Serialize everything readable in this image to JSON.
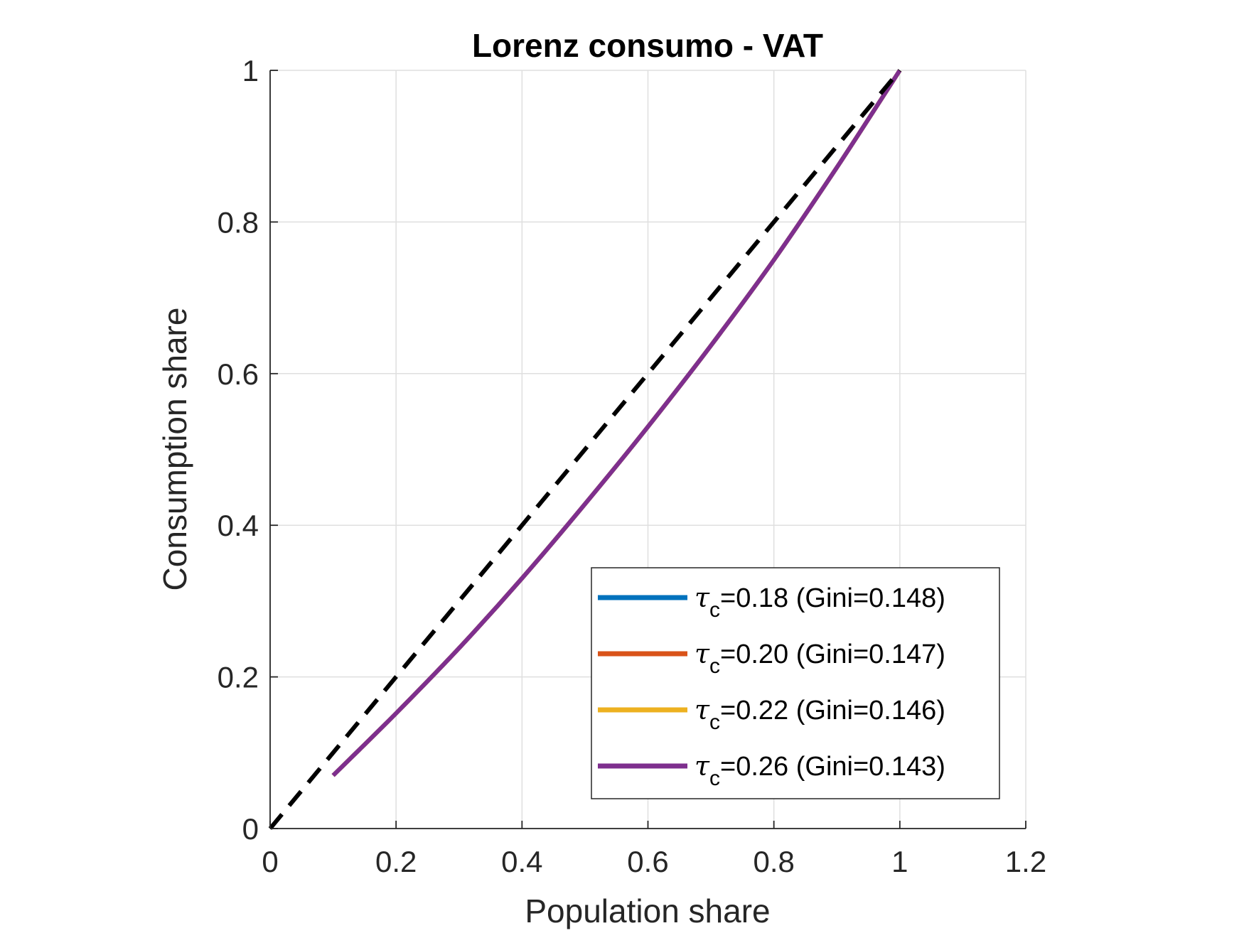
{
  "chart_data": {
    "type": "line",
    "title": "Lorenz consumo - VAT",
    "xlabel": "Population share",
    "ylabel": "Consumption share",
    "xlim": [
      0,
      1.2
    ],
    "ylim": [
      0,
      1
    ],
    "xticks": [
      0,
      0.2,
      0.4,
      0.6,
      0.8,
      1,
      1.2
    ],
    "yticks": [
      0,
      0.2,
      0.4,
      0.6,
      0.8,
      1
    ],
    "xtick_labels": [
      "0",
      "0.2",
      "0.4",
      "0.6",
      "0.8",
      "1",
      "1.2"
    ],
    "ytick_labels": [
      "0",
      "0.2",
      "0.4",
      "0.6",
      "0.8",
      "1"
    ],
    "grid": true,
    "legend_position": "bottom-right",
    "series": [
      {
        "name": "τc=0.18 (Gini=0.148)",
        "legend_symbol": "τ",
        "legend_sub": "c",
        "legend_rest": "=0.18 (Gini=0.148)",
        "color": "#0072BD",
        "dashed": false,
        "x": [
          0.1,
          0.2,
          0.3,
          0.4,
          0.5,
          0.6,
          0.7,
          0.8,
          0.9,
          1.0
        ],
        "y": [
          0.07,
          0.152,
          0.238,
          0.33,
          0.428,
          0.53,
          0.637,
          0.75,
          0.872,
          1.0
        ]
      },
      {
        "name": "τc=0.20 (Gini=0.147)",
        "legend_symbol": "τ",
        "legend_sub": "c",
        "legend_rest": "=0.20 (Gini=0.147)",
        "color": "#D95319",
        "dashed": false,
        "x": [
          0.1,
          0.2,
          0.3,
          0.4,
          0.5,
          0.6,
          0.7,
          0.8,
          0.9,
          1.0
        ],
        "y": [
          0.07,
          0.152,
          0.238,
          0.33,
          0.428,
          0.53,
          0.637,
          0.75,
          0.872,
          1.0
        ]
      },
      {
        "name": "τc=0.22 (Gini=0.146)",
        "legend_symbol": "τ",
        "legend_sub": "c",
        "legend_rest": "=0.22 (Gini=0.146)",
        "color": "#EDB120",
        "dashed": false,
        "x": [
          0.1,
          0.2,
          0.3,
          0.4,
          0.5,
          0.6,
          0.7,
          0.8,
          0.9,
          1.0
        ],
        "y": [
          0.07,
          0.152,
          0.238,
          0.33,
          0.428,
          0.53,
          0.637,
          0.75,
          0.872,
          1.0
        ]
      },
      {
        "name": "τc=0.26 (Gini=0.143)",
        "legend_symbol": "τ",
        "legend_sub": "c",
        "legend_rest": "=0.26 (Gini=0.143)",
        "color": "#7E2F8E",
        "dashed": false,
        "x": [
          0.1,
          0.2,
          0.3,
          0.4,
          0.5,
          0.6,
          0.7,
          0.8,
          0.9,
          1.0
        ],
        "y": [
          0.07,
          0.152,
          0.238,
          0.33,
          0.428,
          0.53,
          0.637,
          0.75,
          0.872,
          1.0
        ]
      },
      {
        "name": "",
        "color": "#000000",
        "dashed": true,
        "in_legend": false,
        "x": [
          0,
          1
        ],
        "y": [
          0,
          1
        ]
      }
    ]
  }
}
